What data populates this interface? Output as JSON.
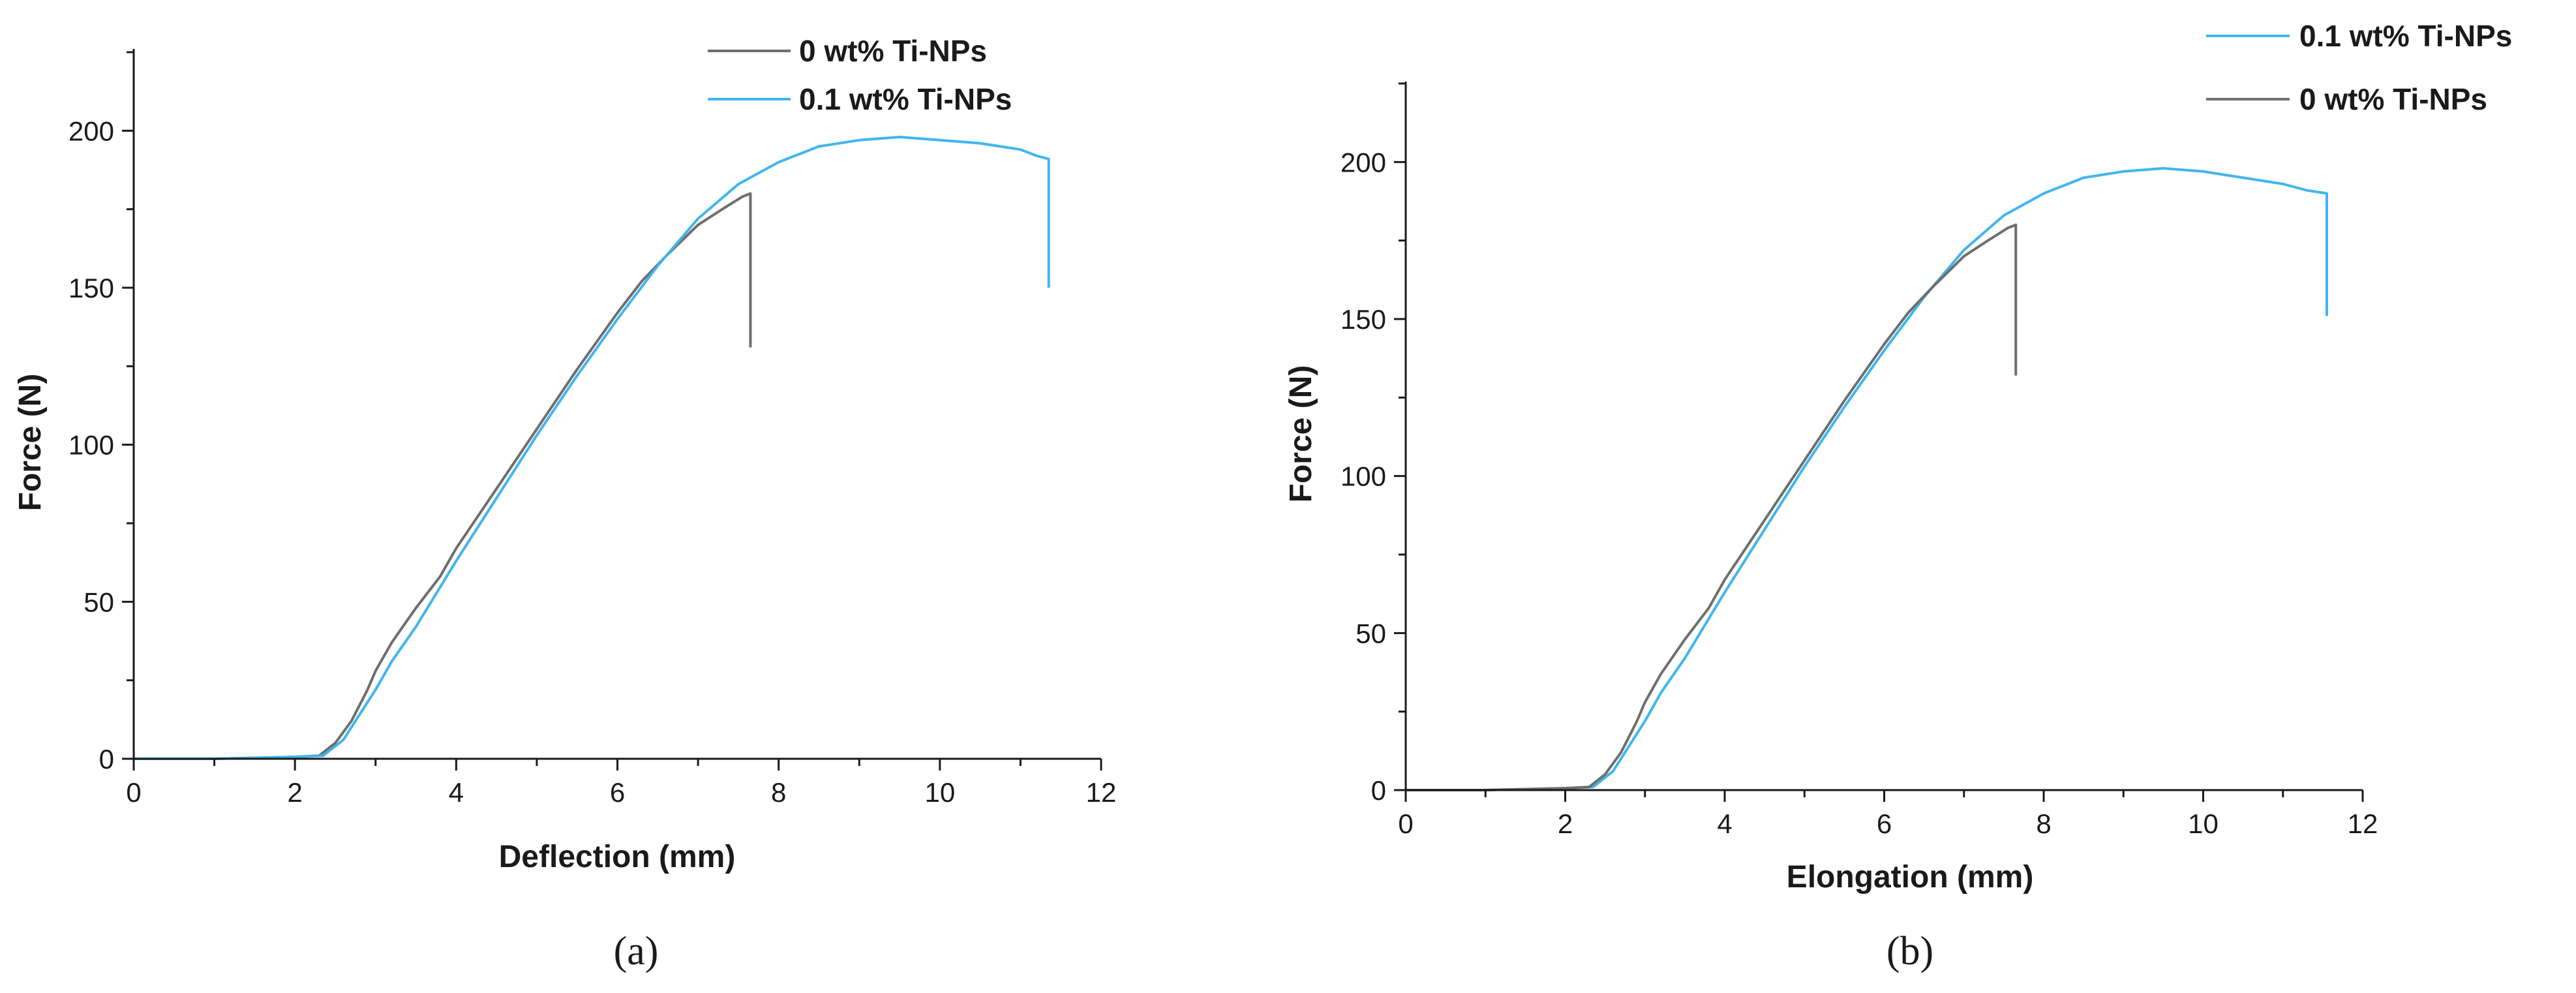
{
  "colors": {
    "gray_series": "#6e6e6e",
    "blue_series": "#3fb6ee",
    "axis": "#1a1a1a"
  },
  "chart_data": [
    {
      "panel_label": "(a)",
      "type": "line",
      "xlabel": "Deflection (mm)",
      "ylabel": "Force (N)",
      "xlim": [
        0,
        12
      ],
      "ylim": [
        0,
        225
      ],
      "xticks": [
        0,
        2,
        4,
        6,
        8,
        10,
        12
      ],
      "yticks": [
        0,
        50,
        100,
        150,
        200
      ],
      "grid": false,
      "legend_position": "top-right",
      "series": [
        {
          "name": "0 wt% Ti-NPs",
          "color": "#6e6e6e",
          "points": [
            [
              0,
              0
            ],
            [
              1.0,
              0
            ],
            [
              2.0,
              0.6
            ],
            [
              2.3,
              1
            ],
            [
              2.5,
              5
            ],
            [
              2.7,
              12
            ],
            [
              2.9,
              22
            ],
            [
              3.0,
              28
            ],
            [
              3.2,
              37
            ],
            [
              3.5,
              48
            ],
            [
              3.8,
              58
            ],
            [
              4.0,
              67
            ],
            [
              4.5,
              86
            ],
            [
              5.0,
              105
            ],
            [
              5.5,
              124
            ],
            [
              6.0,
              142
            ],
            [
              6.3,
              152
            ],
            [
              6.6,
              160
            ],
            [
              7.0,
              170
            ],
            [
              7.3,
              175
            ],
            [
              7.55,
              179
            ],
            [
              7.65,
              180
            ],
            [
              7.65,
              131
            ]
          ]
        },
        {
          "name": "0.1 wt% Ti-NPs",
          "color": "#3fb6ee",
          "points": [
            [
              0,
              0
            ],
            [
              1.0,
              0
            ],
            [
              2.0,
              0.6
            ],
            [
              2.35,
              1
            ],
            [
              2.6,
              6
            ],
            [
              2.8,
              14
            ],
            [
              3.0,
              22
            ],
            [
              3.2,
              31
            ],
            [
              3.5,
              42
            ],
            [
              4.0,
              63
            ],
            [
              4.5,
              83
            ],
            [
              5.0,
              103
            ],
            [
              5.5,
              122
            ],
            [
              6.0,
              140
            ],
            [
              6.5,
              157
            ],
            [
              7.0,
              172
            ],
            [
              7.5,
              183
            ],
            [
              8.0,
              190
            ],
            [
              8.5,
              195
            ],
            [
              9.0,
              197
            ],
            [
              9.5,
              198
            ],
            [
              10.0,
              197
            ],
            [
              10.5,
              196
            ],
            [
              11.0,
              194
            ],
            [
              11.2,
              192
            ],
            [
              11.35,
              191
            ],
            [
              11.35,
              150
            ]
          ]
        }
      ]
    },
    {
      "panel_label": "(b)",
      "type": "line",
      "xlabel": "Elongation (mm)",
      "ylabel": "Force (N)",
      "xlim": [
        0,
        12
      ],
      "ylim": [
        0,
        225
      ],
      "xticks": [
        0,
        2,
        4,
        6,
        8,
        10,
        12
      ],
      "yticks": [
        0,
        50,
        100,
        150,
        200
      ],
      "grid": false,
      "legend_position": "top-right",
      "series": [
        {
          "name": "0.1 wt% Ti-NPs",
          "color": "#3fb6ee",
          "points": [
            [
              0,
              0
            ],
            [
              1.0,
              0
            ],
            [
              2.0,
              0.6
            ],
            [
              2.35,
              1
            ],
            [
              2.6,
              6
            ],
            [
              2.8,
              14
            ],
            [
              3.0,
              22
            ],
            [
              3.2,
              31
            ],
            [
              3.5,
              42
            ],
            [
              4.0,
              63
            ],
            [
              4.5,
              83
            ],
            [
              5.0,
              103
            ],
            [
              5.5,
              122
            ],
            [
              6.0,
              140
            ],
            [
              6.5,
              157
            ],
            [
              7.0,
              172
            ],
            [
              7.5,
              183
            ],
            [
              8.0,
              190
            ],
            [
              8.5,
              195
            ],
            [
              9.0,
              197
            ],
            [
              9.5,
              198
            ],
            [
              10.0,
              197
            ],
            [
              10.5,
              195
            ],
            [
              11.0,
              193
            ],
            [
              11.3,
              191
            ],
            [
              11.55,
              190
            ],
            [
              11.55,
              151
            ]
          ]
        },
        {
          "name": "0 wt% Ti-NPs",
          "color": "#6e6e6e",
          "points": [
            [
              0,
              0
            ],
            [
              1.0,
              0
            ],
            [
              2.0,
              0.6
            ],
            [
              2.3,
              1
            ],
            [
              2.5,
              5
            ],
            [
              2.7,
              12
            ],
            [
              2.9,
              22
            ],
            [
              3.0,
              28
            ],
            [
              3.2,
              37
            ],
            [
              3.5,
              48
            ],
            [
              3.8,
              58
            ],
            [
              4.0,
              67
            ],
            [
              4.5,
              86
            ],
            [
              5.0,
              105
            ],
            [
              5.5,
              124
            ],
            [
              6.0,
              142
            ],
            [
              6.3,
              152
            ],
            [
              6.6,
              160
            ],
            [
              7.0,
              170
            ],
            [
              7.3,
              175
            ],
            [
              7.55,
              179
            ],
            [
              7.65,
              180
            ],
            [
              7.65,
              132
            ]
          ]
        }
      ]
    }
  ]
}
